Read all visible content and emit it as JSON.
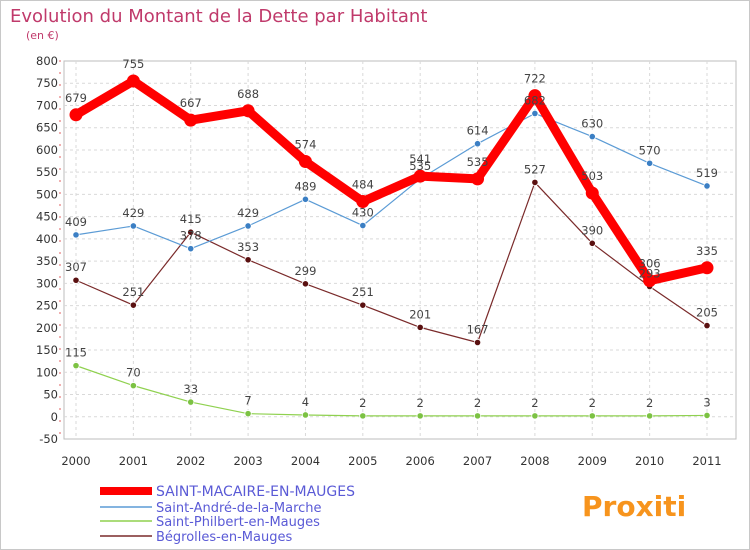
{
  "chart_data": {
    "type": "line",
    "title": "Evolution du Montant de la Dette par Habitant",
    "subtitle": "(en €)",
    "x": [
      "2000",
      "2001",
      "2002",
      "2003",
      "2004",
      "2005",
      "2006",
      "2007",
      "2008",
      "2009",
      "2010",
      "2011"
    ],
    "ylim": [
      -50,
      800
    ],
    "yticks": [
      -50,
      0,
      50,
      100,
      150,
      200,
      250,
      300,
      350,
      400,
      450,
      500,
      550,
      600,
      650,
      700,
      750,
      800
    ],
    "grid": true,
    "legend_position": "bottom-left",
    "series": [
      {
        "name": "SAINT-MACAIRE-EN-MAUGES",
        "color": "#ff0000",
        "values": [
          679,
          755,
          667,
          688,
          574,
          484,
          541,
          535,
          722,
          503,
          306,
          335
        ]
      },
      {
        "name": "Saint-André-de-la-Marche",
        "color": "#5b9bd5",
        "values": [
          409,
          429,
          378,
          429,
          489,
          430,
          535,
          614,
          682,
          630,
          570,
          519
        ]
      },
      {
        "name": "Saint-Philbert-en-Mauges",
        "color": "#8fd14f",
        "values": [
          115,
          70,
          33,
          7,
          4,
          2,
          2,
          2,
          2,
          2,
          2,
          3
        ]
      },
      {
        "name": "Bégrolles-en-Mauges",
        "color": "#7a2a2a",
        "values": [
          307,
          251,
          415,
          353,
          299,
          251,
          201,
          167,
          527,
          390,
          293,
          205
        ]
      }
    ]
  },
  "logo_text": "Proxiti"
}
